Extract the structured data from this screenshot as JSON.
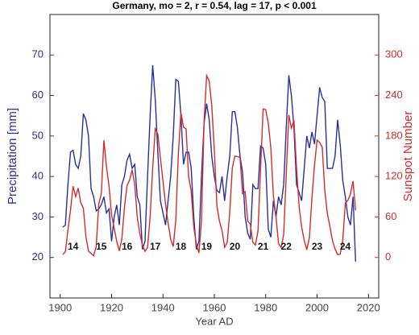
{
  "chart_data": {
    "type": "line",
    "title": "Germany, mo = 2, r = 0.54, lag = 17, p < 0.001",
    "x_label": "Year AD",
    "y_label": "Precipitation [mm]",
    "y2_label": "Sunspot Number",
    "x": [
      1901,
      1902,
      1903,
      1904,
      1905,
      1906,
      1907,
      1908,
      1909,
      1910,
      1911,
      1912,
      1913,
      1914,
      1915,
      1916,
      1917,
      1918,
      1919,
      1920,
      1921,
      1922,
      1923,
      1924,
      1925,
      1926,
      1927,
      1928,
      1929,
      1930,
      1931,
      1932,
      1933,
      1934,
      1935,
      1936,
      1937,
      1938,
      1939,
      1940,
      1941,
      1942,
      1943,
      1944,
      1945,
      1946,
      1947,
      1948,
      1949,
      1950,
      1951,
      1952,
      1953,
      1954,
      1955,
      1956,
      1957,
      1958,
      1959,
      1960,
      1961,
      1962,
      1963,
      1964,
      1965,
      1966,
      1967,
      1968,
      1969,
      1970,
      1971,
      1972,
      1973,
      1974,
      1975,
      1976,
      1977,
      1978,
      1979,
      1980,
      1981,
      1982,
      1983,
      1984,
      1985,
      1986,
      1987,
      1988,
      1989,
      1990,
      1991,
      1992,
      1993,
      1994,
      1995,
      1996,
      1997,
      1998,
      1999,
      2000,
      2001,
      2002,
      2003,
      2004,
      2005,
      2006,
      2007,
      2008,
      2009,
      2010,
      2011,
      2012,
      2013,
      2014,
      2015
    ],
    "series": [
      {
        "name": "Precipitation [mm]",
        "color": "#2a2f9e",
        "axis": "y",
        "values": [
          27.5,
          28,
          38,
          46,
          46.5,
          43,
          42,
          45,
          55.5,
          54,
          50,
          37,
          35,
          31.5,
          32,
          33,
          35,
          31,
          32,
          24,
          30,
          33,
          28,
          38,
          40,
          44,
          45.5,
          42,
          43,
          35,
          33,
          22,
          24,
          40,
          55,
          67.5,
          59,
          46,
          34,
          31,
          28,
          34,
          40,
          50,
          64,
          63.5,
          55,
          43,
          46,
          46,
          42,
          30,
          22,
          24,
          40,
          53,
          58,
          54,
          45,
          40,
          36.5,
          36,
          40,
          34,
          40,
          45,
          56,
          56,
          52,
          45,
          41,
          30,
          26,
          24.5,
          38,
          37,
          37,
          47.5,
          47,
          43,
          27,
          25,
          34,
          30,
          35,
          33,
          38,
          52,
          65,
          60,
          52,
          38,
          36,
          34,
          42,
          50,
          47,
          51,
          48,
          55,
          62,
          59.5,
          58.5,
          42,
          42,
          42,
          45,
          54,
          48,
          39,
          35,
          30,
          28,
          35,
          19
        ]
      },
      {
        "name": "Sunspot Number",
        "color": "#d42b2b",
        "axis": "y2",
        "values": [
          4.6,
          8.5,
          40.8,
          70.1,
          105.5,
          90.1,
          102.8,
          80.9,
          73.2,
          30.9,
          9.5,
          6.0,
          2.4,
          16.1,
          79.0,
          95.0,
          173.6,
          134.6,
          105.7,
          62.7,
          43.5,
          23.7,
          9.7,
          27.9,
          74.0,
          106.5,
          114.7,
          129.7,
          108.2,
          59.4,
          35.1,
          18.6,
          9.2,
          14.6,
          60.2,
          132.8,
          190.6,
          182.6,
          148.0,
          113.0,
          79.2,
          50.8,
          27.1,
          16.1,
          55.3,
          154.3,
          214.7,
          193.0,
          190.7,
          118.9,
          98.3,
          45.0,
          20.1,
          6.6,
          54.2,
          200.7,
          269.3,
          261.7,
          225.1,
          159.0,
          76.4,
          53.4,
          39.9,
          15.0,
          22.0,
          66.8,
          132.9,
          150.2,
          149.4,
          148.0,
          94.4,
          97.6,
          54.1,
          49.2,
          22.5,
          18.4,
          39.3,
          131.0,
          220.1,
          218.9,
          198.9,
          162.4,
          91.0,
          60.5,
          20.6,
          14.8,
          33.9,
          123.0,
          211.1,
          191.8,
          203.3,
          133.0,
          76.1,
          44.9,
          25.1,
          11.6,
          28.9,
          88.3,
          136.3,
          173.9,
          170.4,
          163.6,
          99.3,
          65.3,
          45.8,
          24.7,
          12.6,
          4.2,
          4.8,
          24.9,
          80.8,
          84.5,
          94.0,
          113.3,
          69.8
        ]
      }
    ],
    "annotations": [
      {
        "text": "14",
        "x": 1905,
        "y": 22.6
      },
      {
        "text": "15",
        "x": 1916,
        "y": 22.6
      },
      {
        "text": "16",
        "x": 1926,
        "y": 22.6
      },
      {
        "text": "17",
        "x": 1937,
        "y": 22.6
      },
      {
        "text": "18",
        "x": 1947,
        "y": 22.6
      },
      {
        "text": "19",
        "x": 1957,
        "y": 22.6
      },
      {
        "text": "20",
        "x": 1968,
        "y": 22.6
      },
      {
        "text": "21",
        "x": 1979,
        "y": 22.6
      },
      {
        "text": "22",
        "x": 1988,
        "y": 22.6
      },
      {
        "text": "23",
        "x": 2000,
        "y": 22.6
      },
      {
        "text": "24",
        "x": 2011,
        "y": 22.6
      }
    ],
    "xlim": [
      1896,
      2024
    ],
    "xticks": [
      1900,
      1920,
      1940,
      1960,
      1980,
      2000,
      2020
    ],
    "ylim": [
      10,
      80
    ],
    "yticks": [
      20,
      30,
      40,
      50,
      60,
      70
    ],
    "y2lim": [
      -60,
      360
    ],
    "y2ticks": [
      0,
      60,
      120,
      180,
      240,
      300
    ]
  }
}
